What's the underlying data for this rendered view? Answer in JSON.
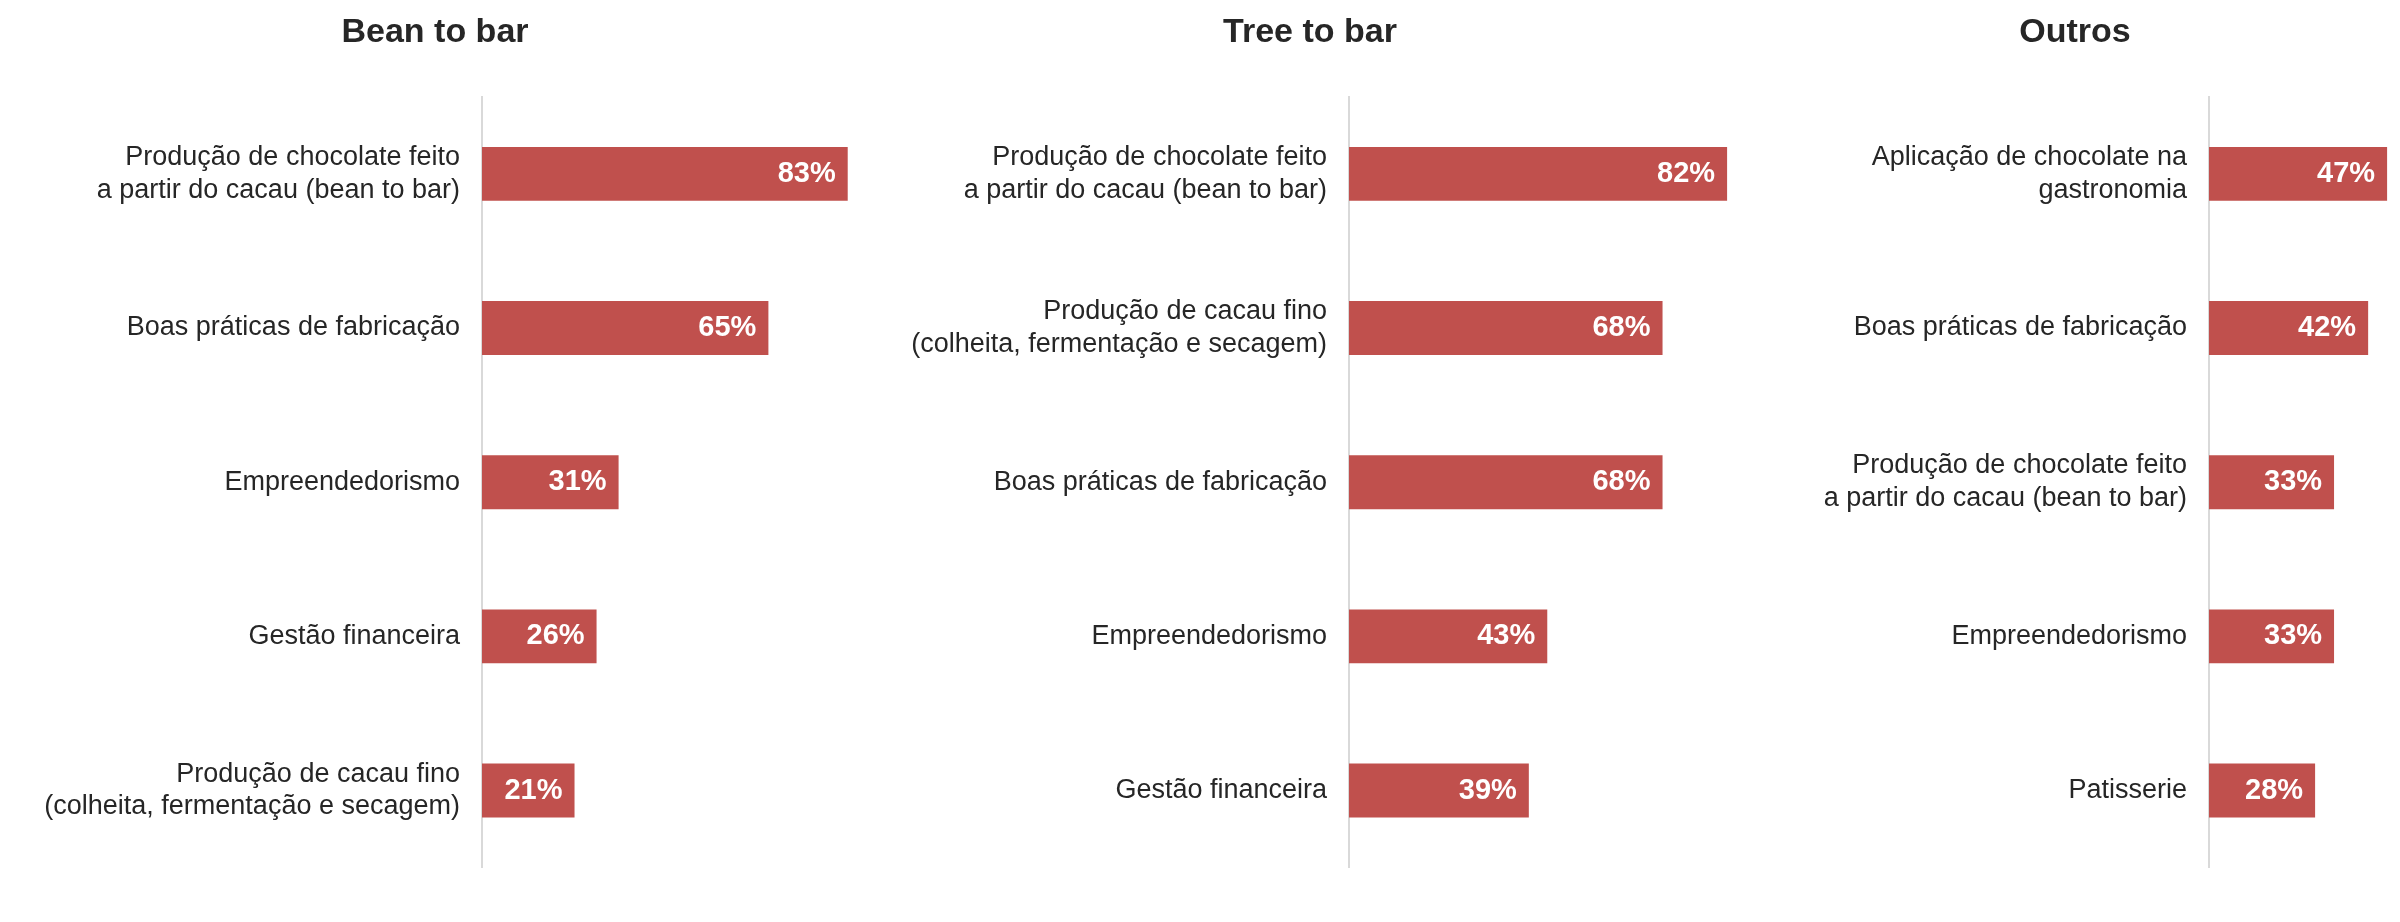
{
  "chart_data": [
    {
      "type": "bar",
      "orientation": "horizontal",
      "title": "Bean to bar",
      "categories": [
        "Produção de chocolate feito\na partir do cacau (bean to bar)",
        "Boas práticas de fabricação",
        "Empreendedorismo",
        "Gestão financeira",
        "Produção de cacau fino\n(colheita, fermentação e secagem)"
      ],
      "values": [
        83,
        65,
        31,
        26,
        21
      ],
      "value_labels": [
        "83%",
        "65%",
        "31%",
        "26%",
        "21%"
      ],
      "color": "#c0504d",
      "tick_labels": "y"
    },
    {
      "type": "bar",
      "orientation": "horizontal",
      "title": "Tree to bar",
      "categories": [
        "Produção de chocolate feito\na partir do cacau (bean to bar)",
        "Produção de cacau fino\n(colheita, fermentação e secagem)",
        "Boas práticas de fabricação",
        "Empreendedorismo",
        "Gestão financeira"
      ],
      "values": [
        82,
        68,
        68,
        43,
        39
      ],
      "value_labels": [
        "82%",
        "68%",
        "68%",
        "43%",
        "39%"
      ],
      "color": "#c0504d",
      "tick_labels": "y"
    },
    {
      "type": "bar",
      "orientation": "horizontal",
      "title": "Outros",
      "categories": [
        "Aplicação de chocolate na\ngastronomia",
        "Boas práticas de fabricação",
        "Produção de chocolate feito\na partir do cacau (bean to bar)",
        "Empreendedorismo",
        "Patisserie"
      ],
      "values": [
        47,
        42,
        33,
        33,
        28
      ],
      "value_labels": [
        "47%",
        "42%",
        "33%",
        "33%",
        "28%"
      ],
      "color": "#c0504d",
      "tick_labels": "y"
    }
  ]
}
